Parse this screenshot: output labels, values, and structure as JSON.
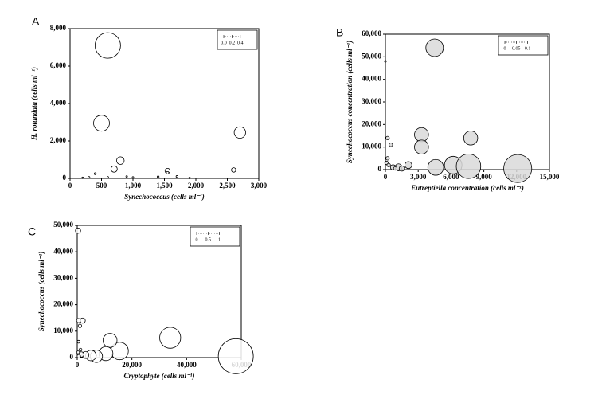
{
  "chart_data": [
    {
      "type": "bubble",
      "panel": "A",
      "x_label": "Synechococcus (cells ml⁻¹)",
      "y_label": "H. rotundata (cells ml⁻¹)",
      "xlim": [
        0,
        3000
      ],
      "ylim": [
        0,
        8000
      ],
      "xticks": [
        0,
        500,
        {
          "value": 1000,
          "label": "1,000"
        },
        {
          "value": 1500,
          "label": "1,500"
        },
        {
          "value": 2000,
          "label": "2,000"
        },
        {
          "value": 2500,
          "label": "2,500"
        },
        {
          "value": 3000,
          "label": "3,000"
        }
      ],
      "yticks": [
        0,
        {
          "value": 2000,
          "label": "2,000"
        },
        {
          "value": 4000,
          "label": "4,000"
        },
        {
          "value": 6000,
          "label": "6,000"
        },
        {
          "value": 8000,
          "label": "8,000"
        }
      ],
      "size_ticks": [
        {
          "value": 0,
          "label": "0.0"
        },
        0.2,
        0.4
      ],
      "color": "#ffffff",
      "x": [
        600,
        500,
        2700,
        800,
        700,
        1550,
        2600,
        300,
        400,
        900,
        1400,
        1550,
        1700,
        1000,
        600,
        1900,
        200
      ],
      "values": [
        7100,
        2950,
        2450,
        950,
        500,
        400,
        450,
        50,
        250,
        100,
        80,
        300,
        100,
        50,
        60,
        20,
        30
      ],
      "sizes": [
        0.4,
        0.25,
        0.18,
        0.12,
        0.1,
        0.08,
        0.07,
        0.03,
        0.03,
        0.02,
        0.03,
        0.04,
        0.03,
        0.02,
        0.02,
        0.02,
        0.02
      ]
    },
    {
      "type": "bubble",
      "panel": "B",
      "x_label": "Eutreptiella concentration (cells ml⁻¹)",
      "y_label": "Synechococcus concentration (cells ml⁻¹)",
      "xlim": [
        0,
        15000
      ],
      "ylim": [
        0,
        60000
      ],
      "xticks": [
        0,
        {
          "value": 3000,
          "label": "3,000"
        },
        {
          "value": 6000,
          "label": "6,000"
        },
        {
          "value": 9000,
          "label": "9,000"
        },
        {
          "value": 12000,
          "label": "12,000"
        },
        {
          "value": 15000,
          "label": "15,000"
        }
      ],
      "yticks": [
        0,
        {
          "value": 10000,
          "label": "10,000"
        },
        {
          "value": 20000,
          "label": "20,000"
        },
        {
          "value": 30000,
          "label": "30,000"
        },
        {
          "value": 40000,
          "label": "40,000"
        },
        {
          "value": 50000,
          "label": "50,000"
        },
        {
          "value": 60000,
          "label": "60,000"
        }
      ],
      "size_ticks": [
        0,
        0.05,
        0.1
      ],
      "color": "#d9d9d9",
      "x": [
        4500,
        3300,
        3300,
        7800,
        4600,
        6200,
        7600,
        12100,
        2100,
        1200,
        200,
        500,
        200,
        100,
        300,
        700,
        1500,
        0,
        900
      ],
      "values": [
        54000,
        15500,
        10000,
        14000,
        1000,
        2000,
        1500,
        500,
        2000,
        1000,
        14000,
        11000,
        5000,
        3000,
        2000,
        1000,
        500,
        48000,
        500
      ],
      "sizes": [
        0.05,
        0.04,
        0.04,
        0.04,
        0.045,
        0.05,
        0.07,
        0.08,
        0.02,
        0.02,
        0.01,
        0.01,
        0.01,
        0.01,
        0.01,
        0.015,
        0.015,
        0.005,
        0.01
      ]
    },
    {
      "type": "bubble",
      "panel": "C",
      "x_label": "Cryptophyte (cells ml⁻¹)",
      "y_label": "Synechococcus (cells ml⁻¹)",
      "xlim": [
        0,
        60000
      ],
      "ylim": [
        0,
        50000
      ],
      "xticks": [
        0,
        {
          "value": 20000,
          "label": "20,000"
        },
        {
          "value": 40000,
          "label": "40,000"
        },
        {
          "value": 60000,
          "label": "60,000"
        }
      ],
      "yticks": [
        0,
        {
          "value": 10000,
          "label": "10,000"
        },
        {
          "value": 20000,
          "label": "20,000"
        },
        {
          "value": 30000,
          "label": "30,000"
        },
        {
          "value": 40000,
          "label": "40,000"
        },
        {
          "value": 50000,
          "label": "50,000"
        }
      ],
      "size_ticks": [
        0,
        0.5,
        1
      ],
      "color": "#ffffff",
      "x": [
        58000,
        34000,
        15500,
        12000,
        10500,
        7000,
        5000,
        3000,
        1500,
        300,
        500,
        2000,
        1000,
        500,
        300,
        1200,
        600
      ],
      "values": [
        500,
        7500,
        2500,
        6500,
        1500,
        500,
        800,
        1000,
        1200,
        48000,
        14000,
        14000,
        12000,
        6000,
        2000,
        3000,
        500
      ],
      "sizes": [
        1,
        0.6,
        0.5,
        0.4,
        0.4,
        0.35,
        0.3,
        0.2,
        0.15,
        0.15,
        0.12,
        0.15,
        0.1,
        0.08,
        0.08,
        0.08,
        0.1
      ]
    }
  ]
}
